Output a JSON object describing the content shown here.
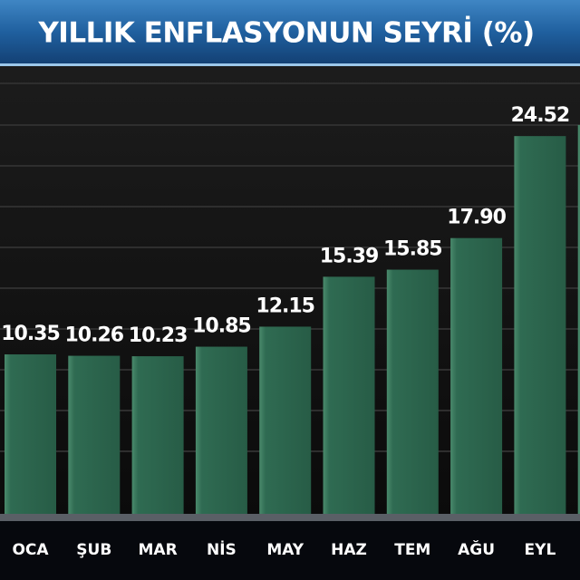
{
  "chart_data": {
    "type": "bar",
    "title": "YILLIK ENFLASYONUN SEYRİ (%)",
    "categories": [
      "OCA",
      "ŞUB",
      "MAR",
      "NİS",
      "MAY",
      "HAZ",
      "TEM",
      "AĞU",
      "EYL",
      null
    ],
    "values": [
      10.35,
      10.26,
      10.23,
      10.85,
      12.15,
      15.39,
      15.85,
      17.9,
      24.52,
      25.24
    ],
    "value_labels": [
      "10.35",
      "10.26",
      "10.23",
      "10.85",
      "12.15",
      "15.39",
      "15.85",
      "17.90",
      "24.52",
      null
    ],
    "color": "#2f6b52"
  }
}
